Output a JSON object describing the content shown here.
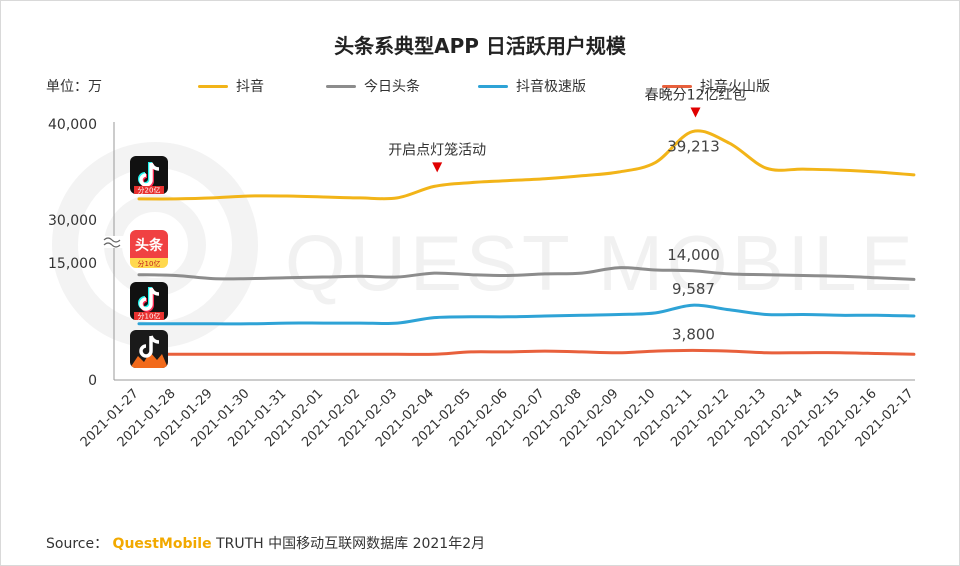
{
  "title": "头条系典型APP 日活跃用户规模",
  "unit_label": "单位：万",
  "legend": [
    {
      "label": "抖音",
      "color": "#f2b418"
    },
    {
      "label": "今日头条",
      "color": "#8c8c8c"
    },
    {
      "label": "抖音极速版",
      "color": "#2ea3d6"
    },
    {
      "label": "抖音火山版",
      "color": "#e8603c"
    }
  ],
  "source": {
    "prefix": "Source：",
    "brand": "QuestMobile",
    "suffix": "TRUTH 中国移动互联网数据库 2021年2月"
  },
  "watermark": "QUEST MOBILE",
  "icons": [
    {
      "name": "douyin-app-icon",
      "badge": "分20亿"
    },
    {
      "name": "toutiao-app-icon",
      "text": "头条",
      "badge": "分10亿"
    },
    {
      "name": "douyin-lite-app-icon",
      "badge": "分10亿"
    },
    {
      "name": "douyin-volcano-app-icon"
    }
  ],
  "chart_data": {
    "type": "line",
    "title": "头条系典型APP 日活跃用户规模",
    "ylabel": "单位：万",
    "axis_note": "broken y-axis between 15,000 and 30,000",
    "yticks": [
      "0",
      "15,000",
      "30,000",
      "40,000"
    ],
    "categories": [
      "2021-01-27",
      "2021-01-28",
      "2021-01-29",
      "2021-01-30",
      "2021-01-31",
      "2021-02-01",
      "2021-02-02",
      "2021-02-03",
      "2021-02-04",
      "2021-02-05",
      "2021-02-06",
      "2021-02-07",
      "2021-02-08",
      "2021-02-09",
      "2021-02-10",
      "2021-02-11",
      "2021-02-12",
      "2021-02-13",
      "2021-02-14",
      "2021-02-15",
      "2021-02-16",
      "2021-02-17"
    ],
    "series": [
      {
        "name": "抖音",
        "color": "#f2b418",
        "values": [
          32200,
          32200,
          32300,
          32500,
          32500,
          32400,
          32300,
          32300,
          33500,
          33900,
          34100,
          34300,
          34600,
          35000,
          36000,
          39213,
          38000,
          35400,
          35300,
          35200,
          35000,
          34700
        ]
      },
      {
        "name": "今日头条",
        "color": "#8c8c8c",
        "values": [
          13500,
          13400,
          13000,
          13000,
          13100,
          13200,
          13300,
          13200,
          13700,
          13500,
          13400,
          13600,
          13700,
          14400,
          14100,
          14000,
          13600,
          13500,
          13400,
          13300,
          13100,
          12900
        ]
      },
      {
        "name": "抖音极速版",
        "color": "#2ea3d6",
        "values": [
          7200,
          7200,
          7200,
          7200,
          7300,
          7300,
          7300,
          7300,
          8000,
          8100,
          8100,
          8200,
          8300,
          8400,
          8600,
          9587,
          9000,
          8400,
          8400,
          8300,
          8300,
          8200
        ]
      },
      {
        "name": "抖音火山版",
        "color": "#e8603c",
        "values": [
          3300,
          3300,
          3300,
          3300,
          3300,
          3300,
          3300,
          3300,
          3300,
          3600,
          3600,
          3700,
          3600,
          3500,
          3700,
          3800,
          3700,
          3500,
          3500,
          3500,
          3400,
          3300
        ]
      }
    ],
    "data_labels": [
      {
        "series": "抖音",
        "category": "2021-02-11",
        "text": "39,213"
      },
      {
        "series": "今日头条",
        "category": "2021-02-11",
        "text": "14,000"
      },
      {
        "series": "抖音极速版",
        "category": "2021-02-11",
        "text": "9,587"
      },
      {
        "series": "抖音火山版",
        "category": "2021-02-11",
        "text": "3,800"
      }
    ],
    "annotations": [
      {
        "text": "开启点灯笼活动",
        "category": "2021-02-04"
      },
      {
        "text": "春晚分12亿红包",
        "category": "2021-02-11"
      }
    ]
  }
}
